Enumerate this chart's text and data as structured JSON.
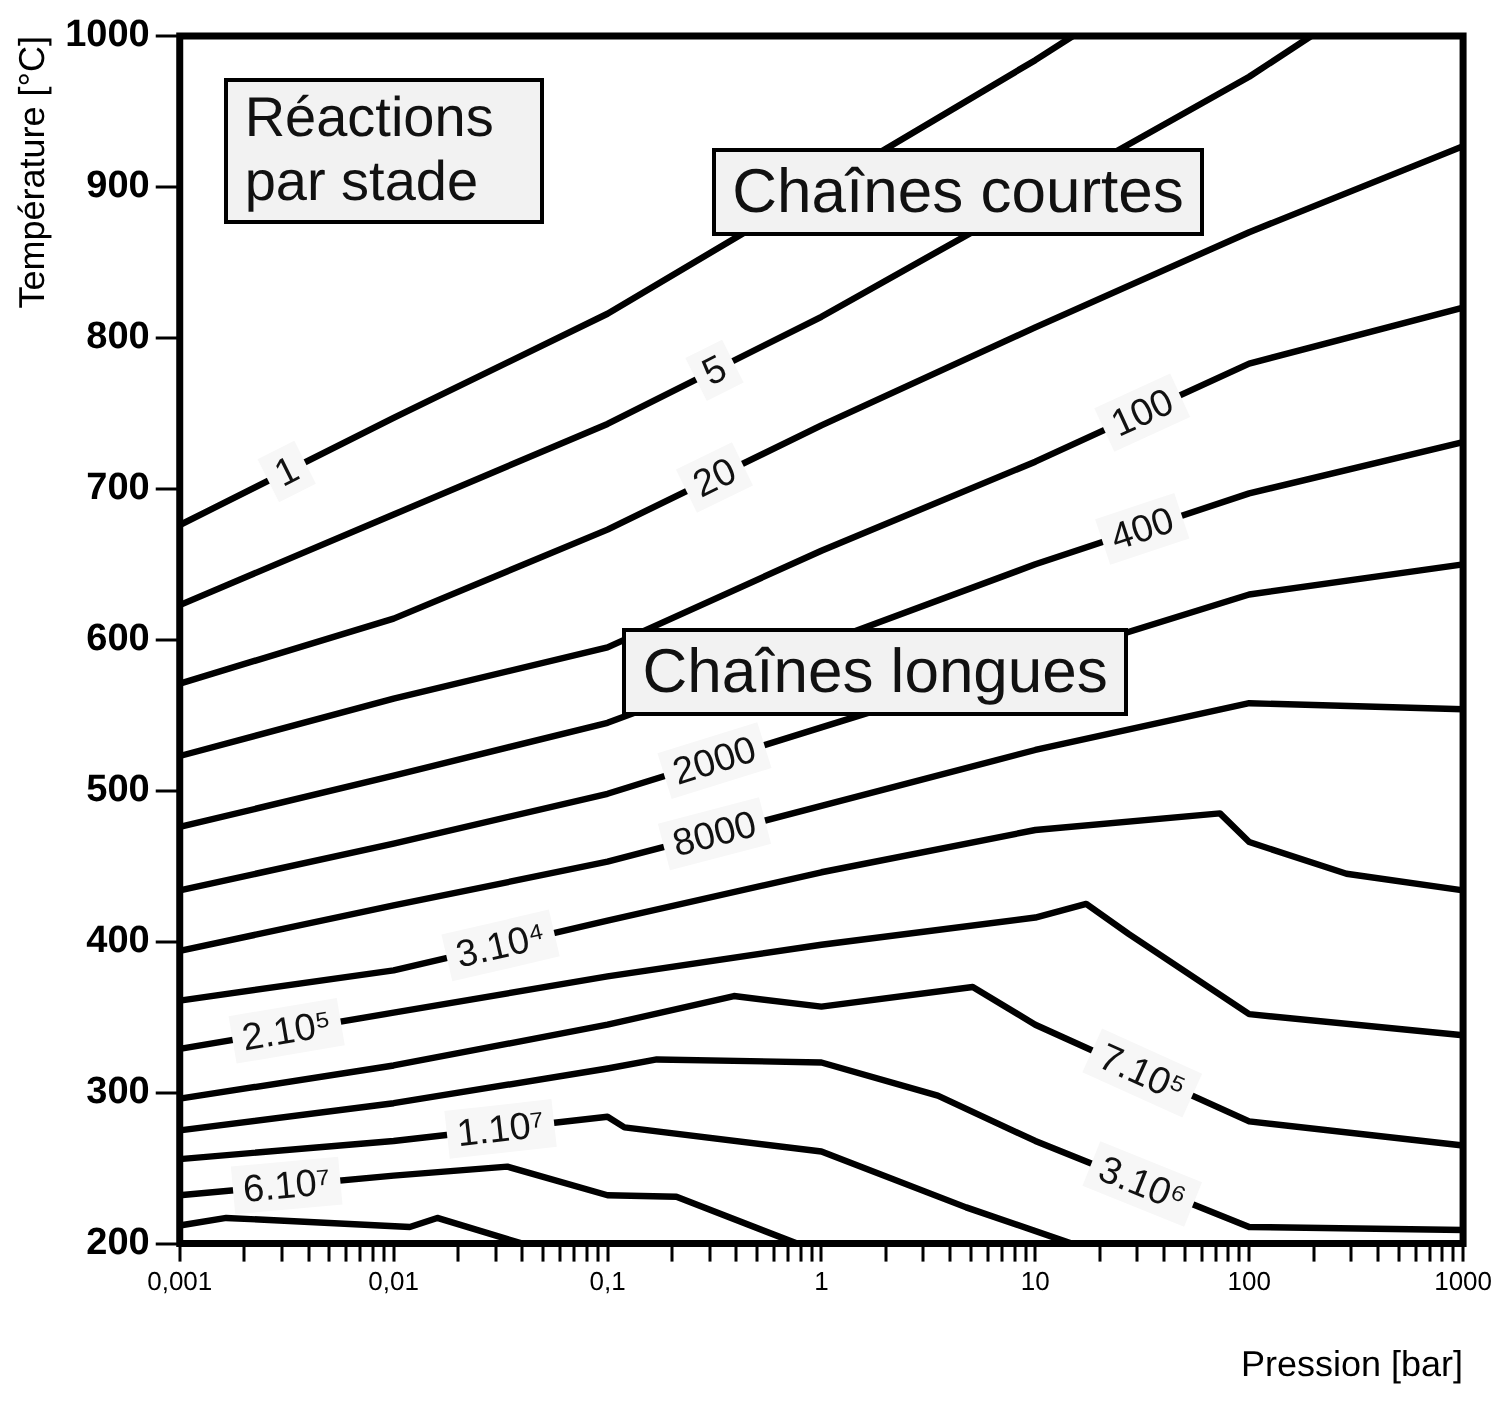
{
  "chart_data": {
    "type": "line",
    "xlabel": "Pression [bar]",
    "ylabel": "Température [°C]",
    "annotations": [
      "Réactions par stade",
      "Chaînes courtes",
      "Chaînes longues"
    ],
    "log": "x",
    "grid": false,
    "legend": false,
    "marker": "none",
    "line_style": "solid",
    "xlim": [
      0.001,
      1000
    ],
    "ylim": [
      200,
      1000
    ],
    "xticks": [
      {
        "value": 0.001,
        "label": "0,001"
      },
      {
        "value": 0.002,
        "label": null
      },
      {
        "value": 0.003,
        "label": null
      },
      {
        "value": 0.004,
        "label": null
      },
      {
        "value": 0.005,
        "label": null
      },
      {
        "value": 0.006,
        "label": null
      },
      {
        "value": 0.007,
        "label": null
      },
      {
        "value": 0.008,
        "label": null
      },
      {
        "value": 0.009,
        "label": null
      },
      {
        "value": 0.01,
        "label": "0,01"
      },
      {
        "value": 0.02,
        "label": null
      },
      {
        "value": 0.03,
        "label": null
      },
      {
        "value": 0.04,
        "label": null
      },
      {
        "value": 0.05,
        "label": null
      },
      {
        "value": 0.06,
        "label": null
      },
      {
        "value": 0.07,
        "label": null
      },
      {
        "value": 0.08,
        "label": null
      },
      {
        "value": 0.09,
        "label": null
      },
      {
        "value": 0.1,
        "label": "0,1"
      },
      {
        "value": 0.2,
        "label": null
      },
      {
        "value": 0.3,
        "label": null
      },
      {
        "value": 0.4,
        "label": null
      },
      {
        "value": 0.5,
        "label": null
      },
      {
        "value": 0.6,
        "label": null
      },
      {
        "value": 0.7,
        "label": null
      },
      {
        "value": 0.8,
        "label": null
      },
      {
        "value": 0.9,
        "label": null
      },
      1,
      {
        "value": 2,
        "label": null
      },
      {
        "value": 3,
        "label": null
      },
      {
        "value": 4,
        "label": null
      },
      {
        "value": 5,
        "label": null
      },
      {
        "value": 6,
        "label": null
      },
      {
        "value": 7,
        "label": null
      },
      {
        "value": 8,
        "label": null
      },
      {
        "value": 9,
        "label": null
      },
      10,
      {
        "value": 20,
        "label": null
      },
      {
        "value": 30,
        "label": null
      },
      {
        "value": 40,
        "label": null
      },
      {
        "value": 50,
        "label": null
      },
      {
        "value": 60,
        "label": null
      },
      {
        "value": 70,
        "label": null
      },
      {
        "value": 80,
        "label": null
      },
      {
        "value": 90,
        "label": null
      },
      100,
      {
        "value": 200,
        "label": null
      },
      {
        "value": 300,
        "label": null
      },
      {
        "value": 400,
        "label": null
      },
      {
        "value": 500,
        "label": null
      },
      {
        "value": 600,
        "label": null
      },
      {
        "value": 700,
        "label": null
      },
      {
        "value": 800,
        "label": null
      },
      {
        "value": 900,
        "label": null
      },
      1000
    ],
    "yticks": [
      200,
      300,
      400,
      500,
      600,
      700,
      800,
      900,
      1000
    ],
    "series": [
      {
        "name": "1",
        "color": "#000000",
        "x": [
          0.001,
          0.01,
          0.1,
          10,
          15
        ],
        "values": [
          676,
          747,
          816,
          984,
          1000
        ]
      },
      {
        "name": "5",
        "color": "#000000",
        "x": [
          0.001,
          0.01,
          0.1,
          1,
          100,
          195
        ],
        "values": [
          623,
          683,
          743,
          814,
          973,
          1000
        ]
      },
      {
        "name": "20",
        "color": "#000000",
        "x": [
          0.001,
          0.01,
          0.1,
          1,
          10,
          100,
          1000
        ],
        "values": [
          571,
          614,
          673,
          742,
          807,
          870,
          927
        ]
      },
      {
        "name": "100",
        "color": "#000000",
        "x": [
          0.001,
          0.01,
          0.1,
          1,
          10,
          100,
          1000
        ],
        "values": [
          523,
          561,
          595,
          659,
          718,
          783,
          820
        ]
      },
      {
        "name": "400",
        "color": "#000000",
        "x": [
          0.001,
          0.01,
          0.1,
          10,
          100,
          1000
        ],
        "values": [
          476,
          510,
          545,
          650,
          697,
          731
        ]
      },
      {
        "name": "2000",
        "color": "#000000",
        "x": [
          0.001,
          0.01,
          0.1,
          1,
          100,
          1000
        ],
        "values": [
          434,
          465,
          498,
          542,
          630,
          650
        ]
      },
      {
        "name": "8000",
        "color": "#000000",
        "x": [
          0.001,
          0.01,
          0.1,
          1,
          10,
          100,
          1000
        ],
        "values": [
          394,
          424,
          453,
          490,
          527,
          558,
          554
        ]
      },
      {
        "name": "3.10⁴",
        "color": "#000000",
        "x": [
          0.001,
          0.01,
          0.1,
          1,
          10,
          73,
          100,
          285,
          1000
        ],
        "values": [
          361,
          381,
          414,
          446,
          474,
          485,
          466,
          445,
          434
        ]
      },
      {
        "name": "2.10⁵",
        "color": "#000000",
        "x": [
          0.001,
          0.01,
          0.1,
          1,
          10,
          17.3,
          27.4,
          100,
          1000
        ],
        "values": [
          329,
          353,
          377,
          398,
          416,
          425,
          405,
          352,
          338
        ]
      },
      {
        "name": "7.10⁵",
        "color": "#000000",
        "x": [
          0.001,
          0.01,
          0.1,
          0.39,
          1,
          5.1,
          10,
          100,
          1000
        ],
        "values": [
          296,
          318,
          345,
          364,
          357,
          370,
          345,
          281,
          265
        ]
      },
      {
        "name": "3.10⁶",
        "color": "#000000",
        "x": [
          0.001,
          0.01,
          0.1,
          0.17,
          1,
          3.5,
          10,
          100,
          1000
        ],
        "values": [
          275,
          293,
          316,
          322,
          320,
          298,
          268,
          211,
          209
        ]
      },
      {
        "name": "1.10⁷",
        "color": "#000000",
        "x": [
          0.001,
          0.01,
          0.1,
          0.12,
          1,
          4.75,
          14.8
        ],
        "values": [
          256,
          268,
          284,
          277,
          261,
          224,
          200
        ]
      },
      {
        "name": "6.10⁷",
        "color": "#000000",
        "x": [
          0.001,
          0.01,
          0.034,
          0.1,
          0.21,
          0.77
        ],
        "values": [
          232,
          245,
          251,
          232,
          231,
          200
        ]
      },
      {
        "color": "#000000",
        "x": [
          0.001,
          0.00165,
          0.0119,
          0.016,
          0.04
        ],
        "values": [
          212,
          217,
          211,
          217,
          200
        ]
      }
    ]
  }
}
